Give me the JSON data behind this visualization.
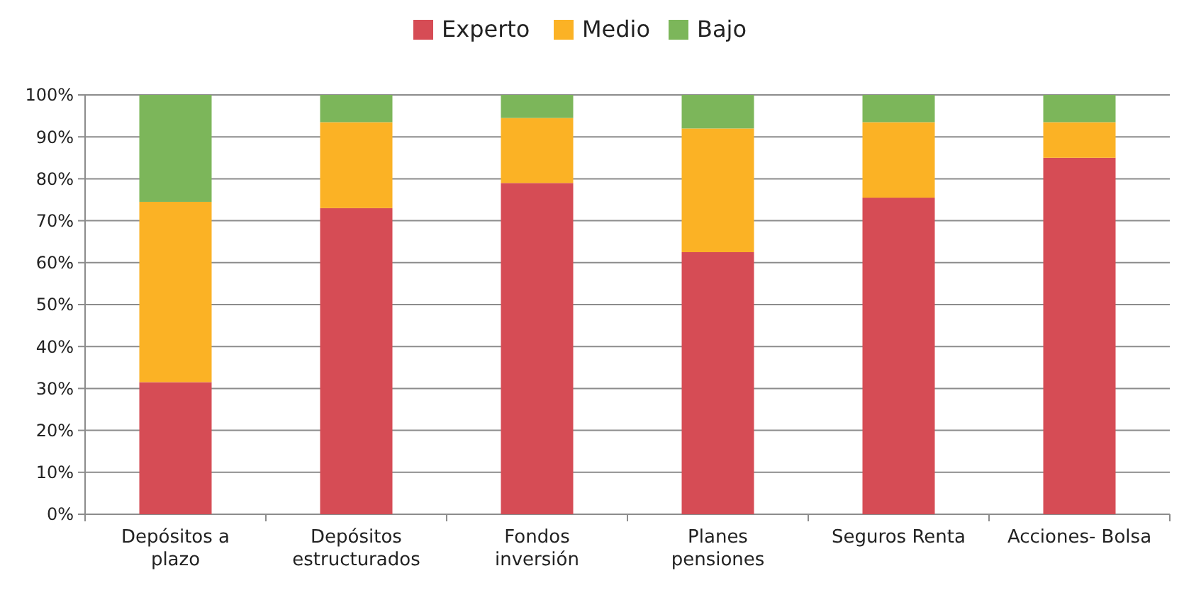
{
  "chart_data": {
    "type": "bar",
    "stacked": true,
    "categories": [
      "Depósitos a plazo",
      "Depósitos estructurados",
      "Fondos inversión",
      "Planes pensiones",
      "Seguros Renta",
      "Acciones- Bolsa"
    ],
    "series": [
      {
        "name": "Experto",
        "color": "#d64c55",
        "values": [
          31.5,
          73,
          79,
          62.5,
          75.5,
          85
        ]
      },
      {
        "name": "Medio",
        "color": "#fbb225",
        "values": [
          43,
          20.5,
          15.5,
          29.5,
          18,
          8.5
        ]
      },
      {
        "name": "Bajo",
        "color": "#7cb65a",
        "values": [
          25.5,
          6.5,
          5.5,
          8,
          6.5,
          6.5
        ]
      }
    ],
    "ylim": [
      0,
      100
    ],
    "yticks": [
      {
        "value": 0,
        "label": "0%"
      },
      {
        "value": 10,
        "label": "10%"
      },
      {
        "value": 20,
        "label": "20%"
      },
      {
        "value": 30,
        "label": "30%"
      },
      {
        "value": 40,
        "label": "40%"
      },
      {
        "value": 50,
        "label": "50%"
      },
      {
        "value": 60,
        "label": "60%"
      },
      {
        "value": 70,
        "label": "70%"
      },
      {
        "value": 80,
        "label": "80%"
      },
      {
        "value": 90,
        "label": "90%"
      },
      {
        "value": 100,
        "label": "100%"
      }
    ],
    "grid": "y",
    "legend": "top"
  }
}
